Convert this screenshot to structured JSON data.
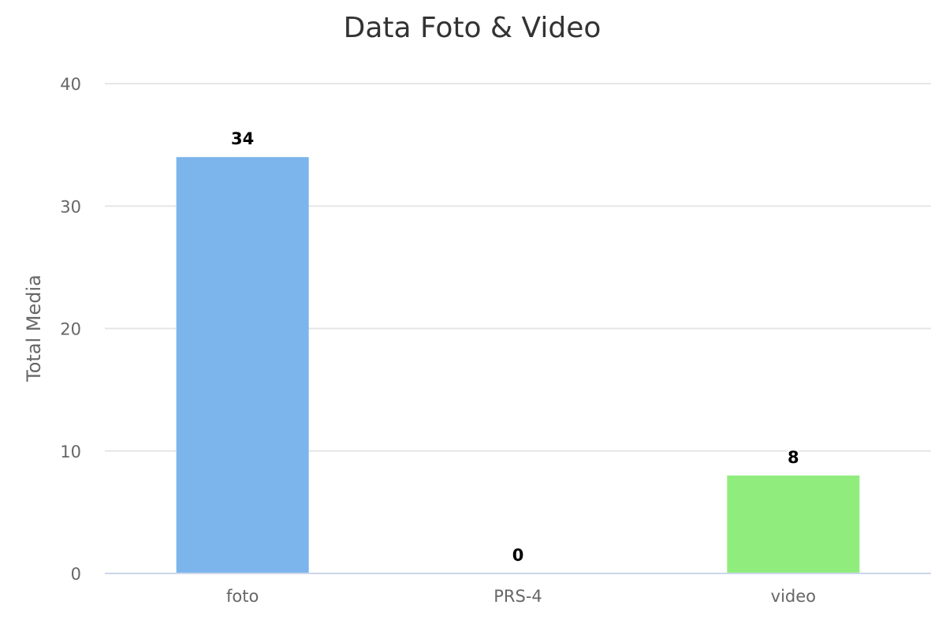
{
  "chart_data": {
    "type": "bar",
    "title": "Data Foto & Video",
    "xlabel": "",
    "ylabel": "Total Media",
    "categories": [
      "foto",
      "PRS-4",
      "video"
    ],
    "values": [
      34,
      0,
      8
    ],
    "data_labels": [
      "34",
      "0",
      "8"
    ],
    "colors": [
      "#7cb5ec",
      "#434348",
      "#90ed7d"
    ],
    "ylim": [
      0,
      40
    ],
    "yticks": [
      0,
      10,
      20,
      30,
      40
    ],
    "ytick_labels": [
      "0",
      "10",
      "20",
      "30",
      "40"
    ],
    "grid": true,
    "legend": "none"
  }
}
